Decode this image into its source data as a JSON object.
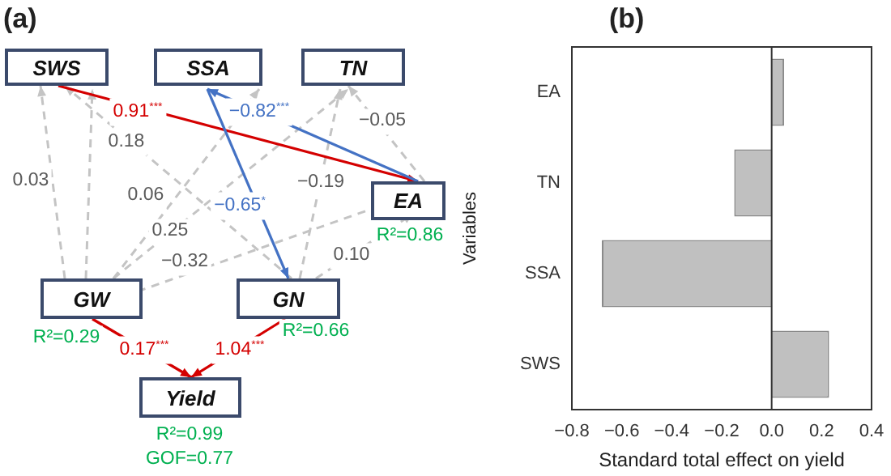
{
  "chart_data": [
    {
      "type": "other",
      "title": "(a)",
      "annotations": [
        "SWS",
        "SSA",
        "TN",
        "EA",
        "GW",
        "GN",
        "Yield",
        "0.91$^{***}$",
        "−0.82$^{***}$",
        "−0.05",
        "0.18",
        "0.03",
        "0.06",
        "−0.19",
        "−0.65$^{*}$",
        "0.25",
        "−0.32",
        "0.10",
        "R²=0.86",
        "R²=0.29",
        "R²=0.66",
        "0.17$^{***}$",
        "1.04$^{***}$",
        "R²=0.99",
        "GOF=0.77"
      ]
    },
    {
      "type": "bar",
      "title": "(b)",
      "orientation": "horizontal",
      "categories": [
        "EA",
        "TN",
        "SSA",
        "SWS"
      ],
      "values": [
        0.05,
        -0.15,
        -0.68,
        0.23
      ],
      "color": "#c0c0c0",
      "xlim": [
        -0.8,
        0.4
      ],
      "xticks": [
        {
          "value": -0.8,
          "label": "−0.8"
        },
        {
          "value": -0.6,
          "label": "−0.6"
        },
        {
          "value": -0.4,
          "label": "−0.4"
        },
        {
          "value": -0.2,
          "label": "−0.2"
        },
        {
          "value": 0,
          "label": "0.0"
        },
        {
          "value": 0.2,
          "label": "0.2"
        },
        {
          "value": 0.4,
          "label": "0.4"
        }
      ],
      "xlabel": "Standard total effect on yield",
      "ylabel": "Variables",
      "ref_lines": [
        {
          "axis": "x",
          "value": 0,
          "color": "#333333"
        }
      ],
      "grid": false,
      "legend": false
    }
  ]
}
